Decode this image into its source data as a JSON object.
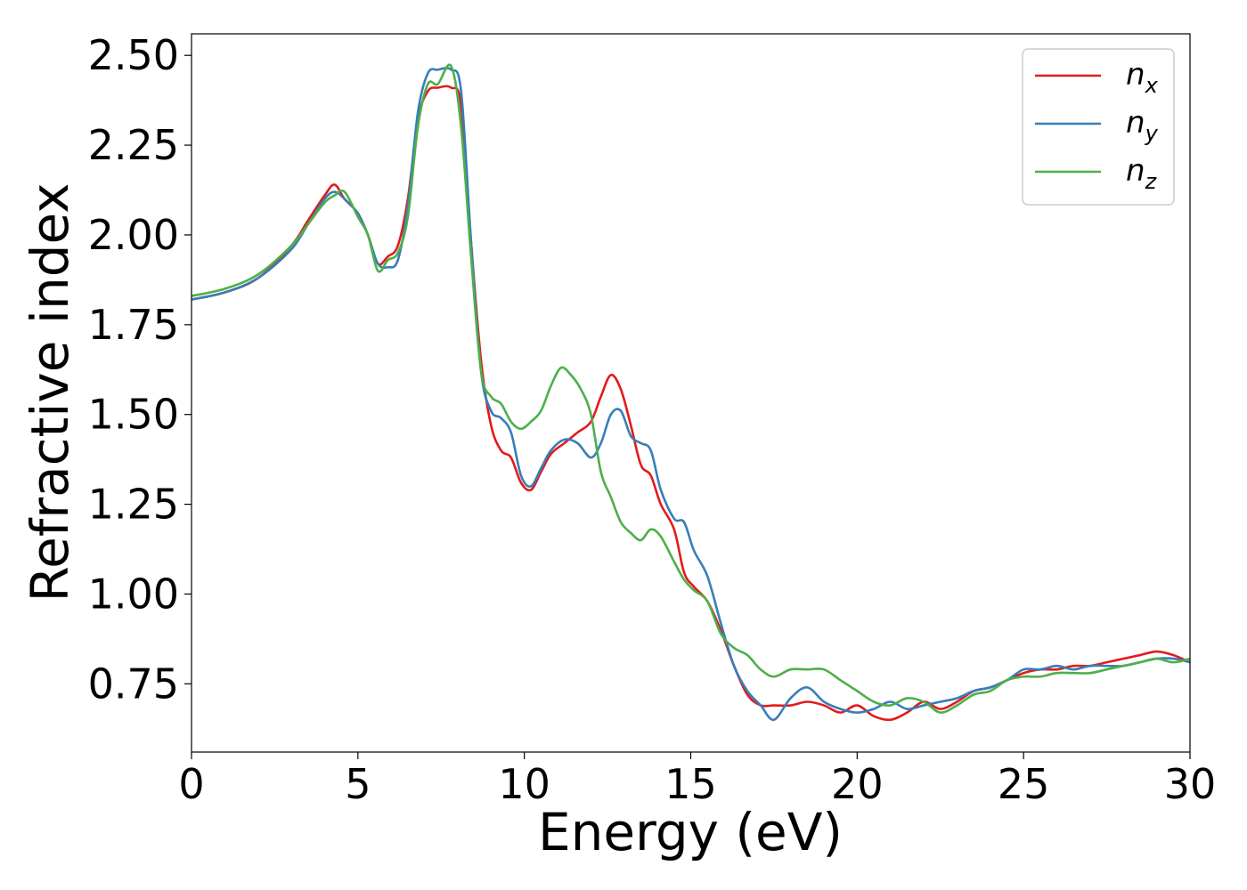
{
  "chart_data": {
    "type": "line",
    "title": "",
    "xlabel": "Energy (eV)",
    "ylabel": "Refractive index",
    "xlim": [
      0,
      30
    ],
    "ylim": [
      0.56,
      2.56
    ],
    "xticks": [
      0,
      5,
      10,
      15,
      20,
      25,
      30
    ],
    "xtick_labels": [
      "0",
      "5",
      "10",
      "15",
      "20",
      "25",
      "30"
    ],
    "yticks": [
      0.75,
      1.0,
      1.25,
      1.5,
      1.75,
      2.0,
      2.25,
      2.5
    ],
    "ytick_labels": [
      "0.75",
      "1.00",
      "1.25",
      "1.50",
      "1.75",
      "2.00",
      "2.25",
      "2.50"
    ],
    "grid": false,
    "legend_position": "top-right",
    "series": [
      {
        "name": "n_x",
        "color": "#e41a1c",
        "x": [
          0,
          1,
          2,
          3,
          3.5,
          4,
          4.3,
          4.6,
          5,
          5.3,
          5.6,
          5.9,
          6.2,
          6.5,
          6.8,
          7.1,
          7.4,
          7.8,
          8.1,
          8.4,
          8.7,
          9.0,
          9.3,
          9.6,
          9.9,
          10.2,
          10.5,
          10.8,
          11.2,
          11.6,
          12.0,
          12.3,
          12.6,
          12.9,
          13.2,
          13.5,
          13.8,
          14.1,
          14.5,
          14.8,
          15.1,
          15.5,
          15.9,
          16.3,
          16.7,
          17.1,
          17.5,
          18.0,
          18.5,
          19.0,
          19.5,
          20.0,
          20.5,
          21.0,
          21.5,
          22.0,
          22.5,
          23.0,
          23.5,
          24.0,
          24.5,
          25.0,
          25.5,
          26.0,
          26.5,
          27.0,
          27.5,
          28.0,
          28.5,
          29.0,
          29.5,
          30.0
        ],
        "y": [
          1.82,
          1.84,
          1.88,
          1.97,
          2.04,
          2.11,
          2.14,
          2.1,
          2.06,
          2.0,
          1.92,
          1.94,
          1.97,
          2.1,
          2.32,
          2.4,
          2.41,
          2.41,
          2.36,
          1.98,
          1.65,
          1.47,
          1.4,
          1.38,
          1.31,
          1.29,
          1.34,
          1.39,
          1.42,
          1.45,
          1.48,
          1.55,
          1.61,
          1.57,
          1.47,
          1.36,
          1.33,
          1.25,
          1.18,
          1.06,
          1.02,
          0.98,
          0.9,
          0.8,
          0.72,
          0.69,
          0.69,
          0.69,
          0.7,
          0.69,
          0.67,
          0.69,
          0.66,
          0.65,
          0.67,
          0.7,
          0.68,
          0.7,
          0.73,
          0.74,
          0.76,
          0.78,
          0.79,
          0.79,
          0.8,
          0.8,
          0.81,
          0.82,
          0.83,
          0.84,
          0.83,
          0.81
        ]
      },
      {
        "name": "n_y",
        "color": "#377eb8",
        "x": [
          0,
          1,
          2,
          3,
          3.5,
          4,
          4.3,
          4.6,
          5,
          5.3,
          5.6,
          5.9,
          6.2,
          6.5,
          6.8,
          7.1,
          7.4,
          7.8,
          8.1,
          8.4,
          8.7,
          9.0,
          9.3,
          9.6,
          9.9,
          10.2,
          10.5,
          10.8,
          11.2,
          11.6,
          12.0,
          12.3,
          12.6,
          12.9,
          13.2,
          13.5,
          13.8,
          14.1,
          14.5,
          14.8,
          15.1,
          15.5,
          15.9,
          16.3,
          16.7,
          17.1,
          17.5,
          18.0,
          18.5,
          19.0,
          19.5,
          20.0,
          20.5,
          21.0,
          21.5,
          22.0,
          22.5,
          23.0,
          23.5,
          24.0,
          24.5,
          25.0,
          25.5,
          26.0,
          26.5,
          27.0,
          27.5,
          28.0,
          28.5,
          29.0,
          29.5,
          30.0
        ],
        "y": [
          1.82,
          1.84,
          1.88,
          1.96,
          2.03,
          2.1,
          2.12,
          2.1,
          2.06,
          2.0,
          1.92,
          1.91,
          1.93,
          2.08,
          2.34,
          2.45,
          2.46,
          2.46,
          2.4,
          1.98,
          1.62,
          1.51,
          1.49,
          1.45,
          1.33,
          1.3,
          1.35,
          1.4,
          1.43,
          1.42,
          1.38,
          1.42,
          1.5,
          1.51,
          1.44,
          1.42,
          1.4,
          1.29,
          1.21,
          1.2,
          1.12,
          1.05,
          0.92,
          0.8,
          0.73,
          0.69,
          0.65,
          0.71,
          0.74,
          0.7,
          0.68,
          0.67,
          0.68,
          0.7,
          0.68,
          0.69,
          0.7,
          0.71,
          0.73,
          0.74,
          0.76,
          0.79,
          0.79,
          0.8,
          0.79,
          0.8,
          0.8,
          0.8,
          0.81,
          0.82,
          0.82,
          0.81
        ]
      },
      {
        "name": "n_z",
        "color": "#4daf4a",
        "x": [
          0,
          1,
          2,
          3,
          3.5,
          4,
          4.3,
          4.6,
          5,
          5.3,
          5.6,
          5.9,
          6.2,
          6.5,
          6.8,
          7.1,
          7.4,
          7.8,
          8.1,
          8.4,
          8.7,
          9.0,
          9.3,
          9.6,
          9.9,
          10.2,
          10.5,
          10.8,
          11.1,
          11.4,
          11.7,
          12.0,
          12.3,
          12.6,
          12.9,
          13.2,
          13.5,
          13.8,
          14.1,
          14.5,
          14.8,
          15.1,
          15.5,
          15.9,
          16.3,
          16.7,
          17.1,
          17.5,
          18.0,
          18.5,
          19.0,
          19.5,
          20.0,
          20.5,
          21.0,
          21.5,
          22.0,
          22.5,
          23.0,
          23.5,
          24.0,
          24.5,
          25.0,
          25.5,
          26.0,
          26.5,
          27.0,
          27.5,
          28.0,
          28.5,
          29.0,
          29.5,
          30.0
        ],
        "y": [
          1.83,
          1.85,
          1.89,
          1.97,
          2.03,
          2.09,
          2.11,
          2.12,
          2.05,
          2.0,
          1.9,
          1.93,
          1.95,
          2.05,
          2.3,
          2.42,
          2.42,
          2.47,
          2.3,
          1.94,
          1.62,
          1.55,
          1.53,
          1.48,
          1.46,
          1.48,
          1.51,
          1.58,
          1.63,
          1.61,
          1.57,
          1.5,
          1.34,
          1.27,
          1.2,
          1.17,
          1.15,
          1.18,
          1.16,
          1.09,
          1.04,
          1.01,
          0.98,
          0.89,
          0.85,
          0.83,
          0.79,
          0.77,
          0.79,
          0.79,
          0.79,
          0.76,
          0.73,
          0.7,
          0.69,
          0.71,
          0.7,
          0.67,
          0.69,
          0.72,
          0.73,
          0.76,
          0.77,
          0.77,
          0.78,
          0.78,
          0.78,
          0.79,
          0.8,
          0.81,
          0.82,
          0.81,
          0.82
        ]
      }
    ]
  }
}
